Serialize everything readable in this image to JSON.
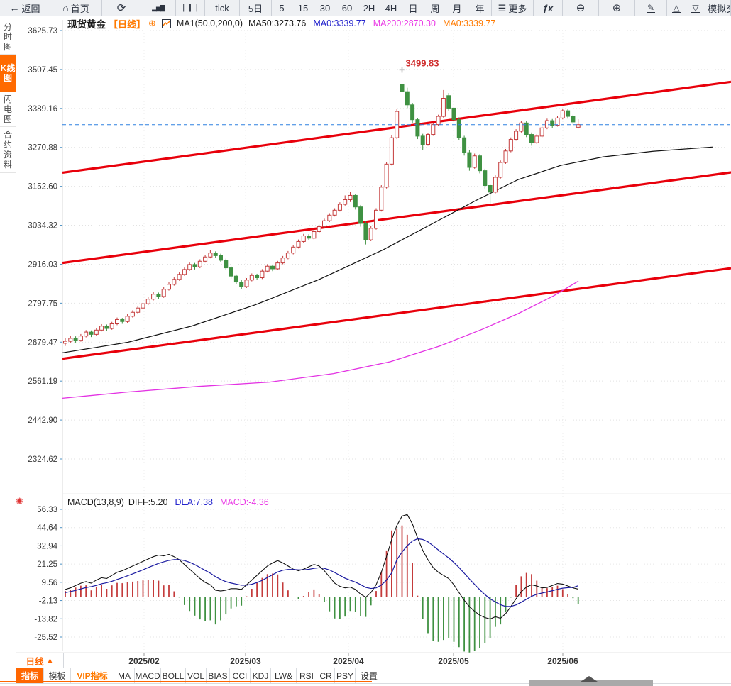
{
  "toolbar": {
    "items": [
      {
        "id": "back",
        "icon": "back-arrow",
        "label": "返回"
      },
      {
        "id": "home",
        "icon": "home",
        "label": "首页"
      },
      {
        "id": "refresh",
        "icon": "refresh",
        "label": ""
      },
      {
        "id": "line-chart",
        "icon": "bar-chart",
        "label": ""
      },
      {
        "id": "kline-chart",
        "icon": "candles",
        "label": ""
      },
      {
        "id": "tick",
        "icon": "",
        "label": "tick"
      },
      {
        "id": "5day",
        "icon": "",
        "label": "5日"
      },
      {
        "id": "min5",
        "icon": "",
        "label": "5"
      },
      {
        "id": "min15",
        "icon": "",
        "label": "15"
      },
      {
        "id": "min30",
        "icon": "",
        "label": "30"
      },
      {
        "id": "min60",
        "icon": "",
        "label": "60"
      },
      {
        "id": "h2",
        "icon": "",
        "label": "2H"
      },
      {
        "id": "h4",
        "icon": "",
        "label": "4H"
      },
      {
        "id": "day",
        "icon": "",
        "label": "日"
      },
      {
        "id": "week",
        "icon": "",
        "label": "周"
      },
      {
        "id": "month",
        "icon": "",
        "label": "月"
      },
      {
        "id": "year",
        "icon": "",
        "label": "年"
      },
      {
        "id": "more",
        "icon": "menu",
        "label": "更多"
      },
      {
        "id": "fx",
        "icon": "fx",
        "label": ""
      },
      {
        "id": "zoom-out",
        "icon": "zoom-out",
        "label": ""
      },
      {
        "id": "zoom-in",
        "icon": "zoom-in",
        "label": ""
      },
      {
        "id": "draw",
        "icon": "pencil",
        "label": ""
      },
      {
        "id": "channel-up",
        "icon": "triangle-up",
        "label": ""
      },
      {
        "id": "channel-down",
        "icon": "triangle-down",
        "label": ""
      },
      {
        "id": "sim-trade",
        "icon": "dollar",
        "label": "模拟交"
      }
    ]
  },
  "sidebar": {
    "tabs": [
      {
        "label": "分时图",
        "active": false
      },
      {
        "label": "K线图",
        "active": true
      },
      {
        "label": "闪电图",
        "active": false
      },
      {
        "label": "合约资料",
        "active": false
      }
    ]
  },
  "chart_header": {
    "symbol": "现货黄金",
    "period_tag": "【日线】",
    "plus_icon": "⊕",
    "ma_settings": "MA1(50,0,200,0)",
    "ma_values": [
      {
        "label": "MA50:3273.76",
        "color": "#1a1a1a"
      },
      {
        "label": "MA0:3339.77",
        "color": "#2323cd"
      },
      {
        "label": "MA200:2870.30",
        "color": "#ea3ae6"
      },
      {
        "label": "MA0:3339.77",
        "color": "#ff7a00"
      }
    ]
  },
  "macd_header": {
    "title": "MACD(13,8,9)",
    "diff_label": "DIFF:5.20",
    "dea_label": "DEA:7.38",
    "macd_label": "MACD:-4.36",
    "diff_color": "#1a1a1a",
    "dea_color": "#2323cd",
    "macd_color": "#ea3ae6"
  },
  "bottom": {
    "period_label": "日线",
    "period_arrow": "▲",
    "tabs": [
      {
        "label": "指标",
        "style": "active"
      },
      {
        "label": "模板",
        "style": ""
      },
      {
        "label": "VIP指标",
        "style": "vip"
      },
      {
        "label": "MA",
        "style": ""
      },
      {
        "label": "MACD",
        "style": ""
      },
      {
        "label": "BOLL",
        "style": ""
      },
      {
        "label": "VOL",
        "style": ""
      },
      {
        "label": "BIAS",
        "style": ""
      },
      {
        "label": "CCI",
        "style": ""
      },
      {
        "label": "KDJ",
        "style": ""
      },
      {
        "label": "LW&",
        "style": ""
      },
      {
        "label": "RSI",
        "style": ""
      },
      {
        "label": "CR",
        "style": ""
      },
      {
        "label": "PSY",
        "style": ""
      },
      {
        "label": "设置",
        "style": ""
      }
    ]
  },
  "chart_data": {
    "type": "candlestick-with-macd",
    "symbol": "现货黄金",
    "period": "日线",
    "main": {
      "y_ticks": [
        "3625.73",
        "3507.45",
        "3389.16",
        "3270.88",
        "3152.60",
        "3034.32",
        "2916.03",
        "2797.75",
        "2679.47",
        "2561.19",
        "2442.90",
        "2324.62"
      ],
      "x_ticks": [
        "2025/02",
        "2025/03",
        "2025/04",
        "2025/05",
        "2025/06"
      ],
      "current_price": 3339.77,
      "peak_annotation": {
        "text": "3499.83",
        "value": 3499.83,
        "candle_index": 65
      },
      "candles": [
        [
          2676,
          2691,
          2668,
          2682
        ],
        [
          2682,
          2699,
          2676,
          2691
        ],
        [
          2691,
          2697,
          2678,
          2685
        ],
        [
          2685,
          2704,
          2681,
          2698
        ],
        [
          2698,
          2716,
          2694,
          2710
        ],
        [
          2710,
          2715,
          2695,
          2703
        ],
        [
          2703,
          2722,
          2699,
          2716
        ],
        [
          2716,
          2734,
          2712,
          2728
        ],
        [
          2728,
          2733,
          2714,
          2721
        ],
        [
          2721,
          2741,
          2717,
          2735
        ],
        [
          2735,
          2754,
          2731,
          2748
        ],
        [
          2748,
          2753,
          2735,
          2742
        ],
        [
          2742,
          2764,
          2738,
          2758
        ],
        [
          2758,
          2776,
          2754,
          2770
        ],
        [
          2770,
          2790,
          2766,
          2783
        ],
        [
          2783,
          2802,
          2779,
          2796
        ],
        [
          2796,
          2816,
          2792,
          2810
        ],
        [
          2810,
          2831,
          2806,
          2825
        ],
        [
          2825,
          2830,
          2810,
          2818
        ],
        [
          2818,
          2846,
          2814,
          2840
        ],
        [
          2840,
          2861,
          2836,
          2855
        ],
        [
          2855,
          2876,
          2851,
          2870
        ],
        [
          2870,
          2891,
          2866,
          2885
        ],
        [
          2885,
          2906,
          2881,
          2900
        ],
        [
          2900,
          2921,
          2896,
          2915
        ],
        [
          2915,
          2920,
          2900,
          2908
        ],
        [
          2908,
          2931,
          2904,
          2925
        ],
        [
          2925,
          2944,
          2921,
          2938
        ],
        [
          2938,
          2958,
          2934,
          2950
        ],
        [
          2950,
          2955,
          2936,
          2942
        ],
        [
          2942,
          2948,
          2922,
          2928
        ],
        [
          2928,
          2933,
          2898,
          2905
        ],
        [
          2905,
          2910,
          2872,
          2880
        ],
        [
          2880,
          2885,
          2855,
          2862
        ],
        [
          2862,
          2868,
          2840,
          2848
        ],
        [
          2848,
          2874,
          2844,
          2868
        ],
        [
          2868,
          2888,
          2864,
          2882
        ],
        [
          2882,
          2887,
          2868,
          2875
        ],
        [
          2875,
          2901,
          2871,
          2895
        ],
        [
          2895,
          2916,
          2891,
          2910
        ],
        [
          2910,
          2915,
          2895,
          2902
        ],
        [
          2902,
          2926,
          2898,
          2920
        ],
        [
          2920,
          2941,
          2916,
          2935
        ],
        [
          2935,
          2956,
          2931,
          2950
        ],
        [
          2950,
          2974,
          2946,
          2968
        ],
        [
          2968,
          2991,
          2964,
          2985
        ],
        [
          2985,
          3008,
          2981,
          3002
        ],
        [
          3002,
          3007,
          2988,
          2995
        ],
        [
          2995,
          3021,
          2991,
          3015
        ],
        [
          3015,
          3036,
          3011,
          3030
        ],
        [
          3030,
          3054,
          3026,
          3048
        ],
        [
          3048,
          3071,
          3044,
          3065
        ],
        [
          3065,
          3086,
          3061,
          3080
        ],
        [
          3080,
          3104,
          3076,
          3098
        ],
        [
          3098,
          3125,
          3094,
          3112
        ],
        [
          3112,
          3135,
          3105,
          3125
        ],
        [
          3125,
          3130,
          3082,
          3090
        ],
        [
          3090,
          3096,
          3030,
          3040
        ],
        [
          3040,
          3046,
          2976,
          2990
        ],
        [
          2990,
          3032,
          2986,
          3025
        ],
        [
          3025,
          3086,
          3021,
          3080
        ],
        [
          3080,
          3156,
          3076,
          3150
        ],
        [
          3150,
          3226,
          3146,
          3220
        ],
        [
          3220,
          3308,
          3216,
          3300
        ],
        [
          3300,
          3388,
          3296,
          3380
        ],
        [
          3462,
          3499.83,
          3412,
          3440
        ],
        [
          3440,
          3452,
          3390,
          3400
        ],
        [
          3400,
          3406,
          3344,
          3355
        ],
        [
          3355,
          3360,
          3296,
          3305
        ],
        [
          3305,
          3312,
          3262,
          3280
        ],
        [
          3280,
          3315,
          3276,
          3310
        ],
        [
          3310,
          3345,
          3306,
          3340
        ],
        [
          3340,
          3370,
          3336,
          3365
        ],
        [
          3365,
          3445,
          3361,
          3420
        ],
        [
          3428,
          3436,
          3382,
          3390
        ],
        [
          3390,
          3398,
          3346,
          3355
        ],
        [
          3355,
          3362,
          3292,
          3300
        ],
        [
          3300,
          3306,
          3246,
          3255
        ],
        [
          3255,
          3262,
          3200,
          3210
        ],
        [
          3210,
          3252,
          3206,
          3245
        ],
        [
          3245,
          3250,
          3192,
          3200
        ],
        [
          3200,
          3206,
          3146,
          3155
        ],
        [
          3155,
          3160,
          3098,
          3135
        ],
        [
          3135,
          3186,
          3131,
          3180
        ],
        [
          3180,
          3231,
          3176,
          3225
        ],
        [
          3225,
          3266,
          3221,
          3260
        ],
        [
          3260,
          3301,
          3256,
          3295
        ],
        [
          3295,
          3326,
          3291,
          3320
        ],
        [
          3320,
          3351,
          3316,
          3345
        ],
        [
          3345,
          3350,
          3302,
          3310
        ],
        [
          3310,
          3316,
          3276,
          3285
        ],
        [
          3285,
          3311,
          3281,
          3305
        ],
        [
          3305,
          3336,
          3301,
          3330
        ],
        [
          3330,
          3358,
          3326,
          3352
        ],
        [
          3352,
          3357,
          3330,
          3338
        ],
        [
          3338,
          3366,
          3334,
          3360
        ],
        [
          3360,
          3388,
          3356,
          3382
        ],
        [
          3382,
          3387,
          3358,
          3365
        ],
        [
          3365,
          3370,
          3340,
          3348
        ],
        [
          3332,
          3356,
          3328,
          3339.77
        ]
      ],
      "trend_channel_lines": [
        {
          "price_left": 3194,
          "price_right": 3470
        },
        {
          "price_left": 2920,
          "price_right": 3195
        },
        {
          "price_left": 2629,
          "price_right": 2904
        }
      ],
      "ma50_path": [
        [
          88,
          2647
        ],
        [
          180,
          2679
        ],
        [
          270,
          2728
        ],
        [
          360,
          2793
        ],
        [
          450,
          2870
        ],
        [
          540,
          2960
        ],
        [
          610,
          3040
        ],
        [
          670,
          3109
        ],
        [
          730,
          3173
        ],
        [
          790,
          3216
        ],
        [
          850,
          3242
        ],
        [
          920,
          3259
        ],
        [
          1005,
          3272
        ]
      ],
      "ma200_path": [
        [
          88,
          2509
        ],
        [
          180,
          2528
        ],
        [
          280,
          2545
        ],
        [
          380,
          2558
        ],
        [
          470,
          2584
        ],
        [
          550,
          2620
        ],
        [
          620,
          2668
        ],
        [
          680,
          2719
        ],
        [
          730,
          2766
        ],
        [
          780,
          2820
        ],
        [
          815,
          2865
        ]
      ]
    },
    "macd": {
      "y_ticks": [
        "56.33",
        "44.64",
        "32.94",
        "21.25",
        "9.56",
        "-2.13",
        "-13.82",
        "-25.52"
      ],
      "diff": [
        5,
        6,
        7.5,
        9,
        10,
        9,
        11,
        12.5,
        12,
        14,
        16,
        17,
        18.5,
        20,
        21.5,
        23,
        24.5,
        26,
        27,
        26.5,
        27.5,
        26,
        24,
        21,
        18,
        15,
        12,
        9.5,
        8,
        4.5,
        4,
        4.5,
        5.5,
        5.5,
        5,
        8,
        11,
        14,
        17,
        20,
        22,
        23.5,
        22,
        20,
        18,
        17,
        18,
        19.5,
        21,
        20,
        17,
        13,
        9,
        7,
        6,
        6.5,
        5,
        2,
        0,
        3,
        8,
        16,
        26,
        37,
        46,
        52,
        53,
        47,
        38,
        30,
        24,
        19,
        16,
        14,
        12,
        8,
        3,
        -2,
        -6,
        -9,
        -11.5,
        -13,
        -14,
        -12.5,
        -13.5,
        -10.5,
        -6,
        -1,
        3.5,
        6.5,
        8,
        7.2,
        6,
        6.3,
        7.5,
        8.8,
        8.4,
        7.2,
        6,
        5.2
      ],
      "dea": [
        3,
        3.6,
        4.4,
        5.3,
        6.2,
        6.8,
        7.6,
        8.6,
        9.3,
        10.2,
        11.4,
        12.5,
        13.7,
        15,
        16.3,
        17.6,
        19,
        20.4,
        21.7,
        22.7,
        23.6,
        24.1,
        24.1,
        23.5,
        22.4,
        20.9,
        19.1,
        17.2,
        15.4,
        13.2,
        11.4,
        10,
        9.1,
        8.4,
        7.7,
        7.7,
        8.3,
        9.4,
        10.8,
        12.6,
        14.4,
        16.2,
        17.3,
        17.8,
        17.8,
        17.6,
        17.6,
        17.9,
        18.5,
        18.9,
        18.5,
        17.5,
        15.8,
        14,
        12.2,
        10.9,
        9.7,
        8.1,
        6.3,
        5.6,
        6,
        7.8,
        11,
        15.6,
        24,
        29,
        33,
        36,
        37.5,
        37,
        35.5,
        33,
        30.3,
        27.7,
        25.2,
        22.3,
        19,
        15.4,
        11.7,
        8.2,
        4.8,
        1.7,
        -1,
        -3,
        -4.8,
        -5.9,
        -5.9,
        -4.9,
        -3.2,
        -1.3,
        0.6,
        1.9,
        2.7,
        3.4,
        4.2,
        5.1,
        5.8,
        6.1,
        6.3,
        7.38
      ]
    },
    "colors": {
      "up": "#c43b3b",
      "down": "#3f9142",
      "trend": "#e8000b",
      "ma50": "#111111",
      "ma200": "#e332e3",
      "price_line": "#2f80e0",
      "diff_line": "#111111",
      "dea_line": "#1a1aa0",
      "annotation": "#d03030",
      "accent": "#ff6600"
    }
  }
}
